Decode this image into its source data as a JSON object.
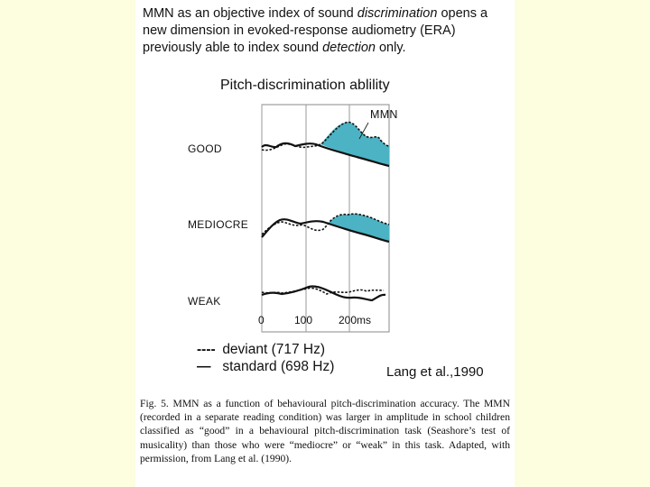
{
  "intro": {
    "part1": "MMN as an objective index of sound ",
    "em1": "discrimination",
    "part2": " opens a new dimension in evoked-response audiometry (ERA) previously able to index sound ",
    "em2": "detection",
    "part3": " only."
  },
  "figure": {
    "title": "Pitch-discrimination ablility",
    "mmn_label": "MMN",
    "conditions": [
      "GOOD",
      "MEDIOCRE",
      "WEAK"
    ],
    "ticks": [
      "0",
      "100",
      "200ms"
    ],
    "legend": [
      {
        "symbol": "----",
        "label": "deviant (717 Hz)"
      },
      {
        "symbol": "—",
        "label": "standard (698 Hz)"
      }
    ],
    "citation": "Lang et al.,1990",
    "colors": {
      "mmn_fill": "#4bb3c3",
      "trace": "#111111",
      "gridline": "#9a9a9a"
    }
  },
  "caption": "Fig. 5.  MMN as a function of behavioural pitch-discrimination accuracy. The MMN (recorded in a separate reading condition) was larger in amplitude in school children classified as “good” in a behavioural pitch-discrimination task (Seashore’s test of musicality) than those who were “mediocre” or “weak” in this task. Adapted, with permission, from Lang et al. (1990)."
}
